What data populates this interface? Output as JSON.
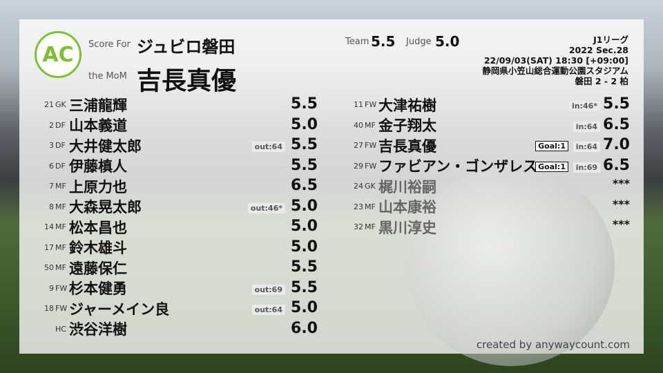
{
  "header": {
    "logo_text": "ANYWAY AC COUNT",
    "score_for_label": "Score For",
    "team": "ジュビロ磐田",
    "mom_label": "the MoM",
    "mom": "吉長真優",
    "team_score_label": "Team",
    "team_score": "5.5",
    "judge_label": "Judge",
    "judge_score": "5.0"
  },
  "match": {
    "league": "J1リーグ",
    "section": "2022 Sec.28",
    "datetime": "22/09/03(SAT) 18:30 [+09:00]",
    "venue": "静岡県小笠山総合運動公園スタジアム",
    "result": "磐田 2 - 2 柏"
  },
  "starters": [
    {
      "num": "21",
      "pos": "GK",
      "name": "三浦龍輝",
      "rating": "5.5"
    },
    {
      "num": "2",
      "pos": "DF",
      "name": "山本義道",
      "rating": "5.0"
    },
    {
      "num": "3",
      "pos": "DF",
      "name": "大井健太郎",
      "sub": "out:64",
      "rating": "5.5"
    },
    {
      "num": "6",
      "pos": "DF",
      "name": "伊藤槙人",
      "rating": "5.5"
    },
    {
      "num": "7",
      "pos": "MF",
      "name": "上原力也",
      "rating": "6.5"
    },
    {
      "num": "8",
      "pos": "MF",
      "name": "大森晃太郎",
      "sub": "out:46*",
      "rating": "5.0"
    },
    {
      "num": "14",
      "pos": "MF",
      "name": "松本昌也",
      "rating": "5.0"
    },
    {
      "num": "17",
      "pos": "MF",
      "name": "鈴木雄斗",
      "rating": "5.0"
    },
    {
      "num": "50",
      "pos": "MF",
      "name": "遠藤保仁",
      "rating": "5.5"
    },
    {
      "num": "9",
      "pos": "FW",
      "name": "杉本健勇",
      "sub": "out:69",
      "rating": "5.5"
    },
    {
      "num": "18",
      "pos": "FW",
      "name": "ジャーメイン良",
      "sub": "out:64",
      "rating": "5.0"
    },
    {
      "num": "",
      "pos": "HC",
      "name": "渋谷洋樹",
      "rating": "6.0"
    }
  ],
  "subs": [
    {
      "num": "11",
      "pos": "FW",
      "name": "大津祐樹",
      "sub": "in:46*",
      "rating": "5.5"
    },
    {
      "num": "40",
      "pos": "MF",
      "name": "金子翔太",
      "sub": "in:64",
      "rating": "6.5"
    },
    {
      "num": "27",
      "pos": "FW",
      "name": "吉長真優",
      "goal": "Goal:1",
      "sub": "in:64",
      "rating": "7.0"
    },
    {
      "num": "29",
      "pos": "FW",
      "name": "ファビアン・ゴンザレス",
      "goal": "Goal:1",
      "sub": "in:69",
      "rating": "6.5"
    },
    {
      "num": "24",
      "pos": "GK",
      "name": "梶川裕嗣",
      "rating": "***",
      "unused": true
    },
    {
      "num": "23",
      "pos": "MF",
      "name": "山本康裕",
      "rating": "***",
      "unused": true
    },
    {
      "num": "32",
      "pos": "MF",
      "name": "黒川淳史",
      "rating": "***",
      "unused": true
    }
  ],
  "footer": "created by anywaycount.com",
  "colors": {
    "logo_green": "#7dc22e"
  }
}
